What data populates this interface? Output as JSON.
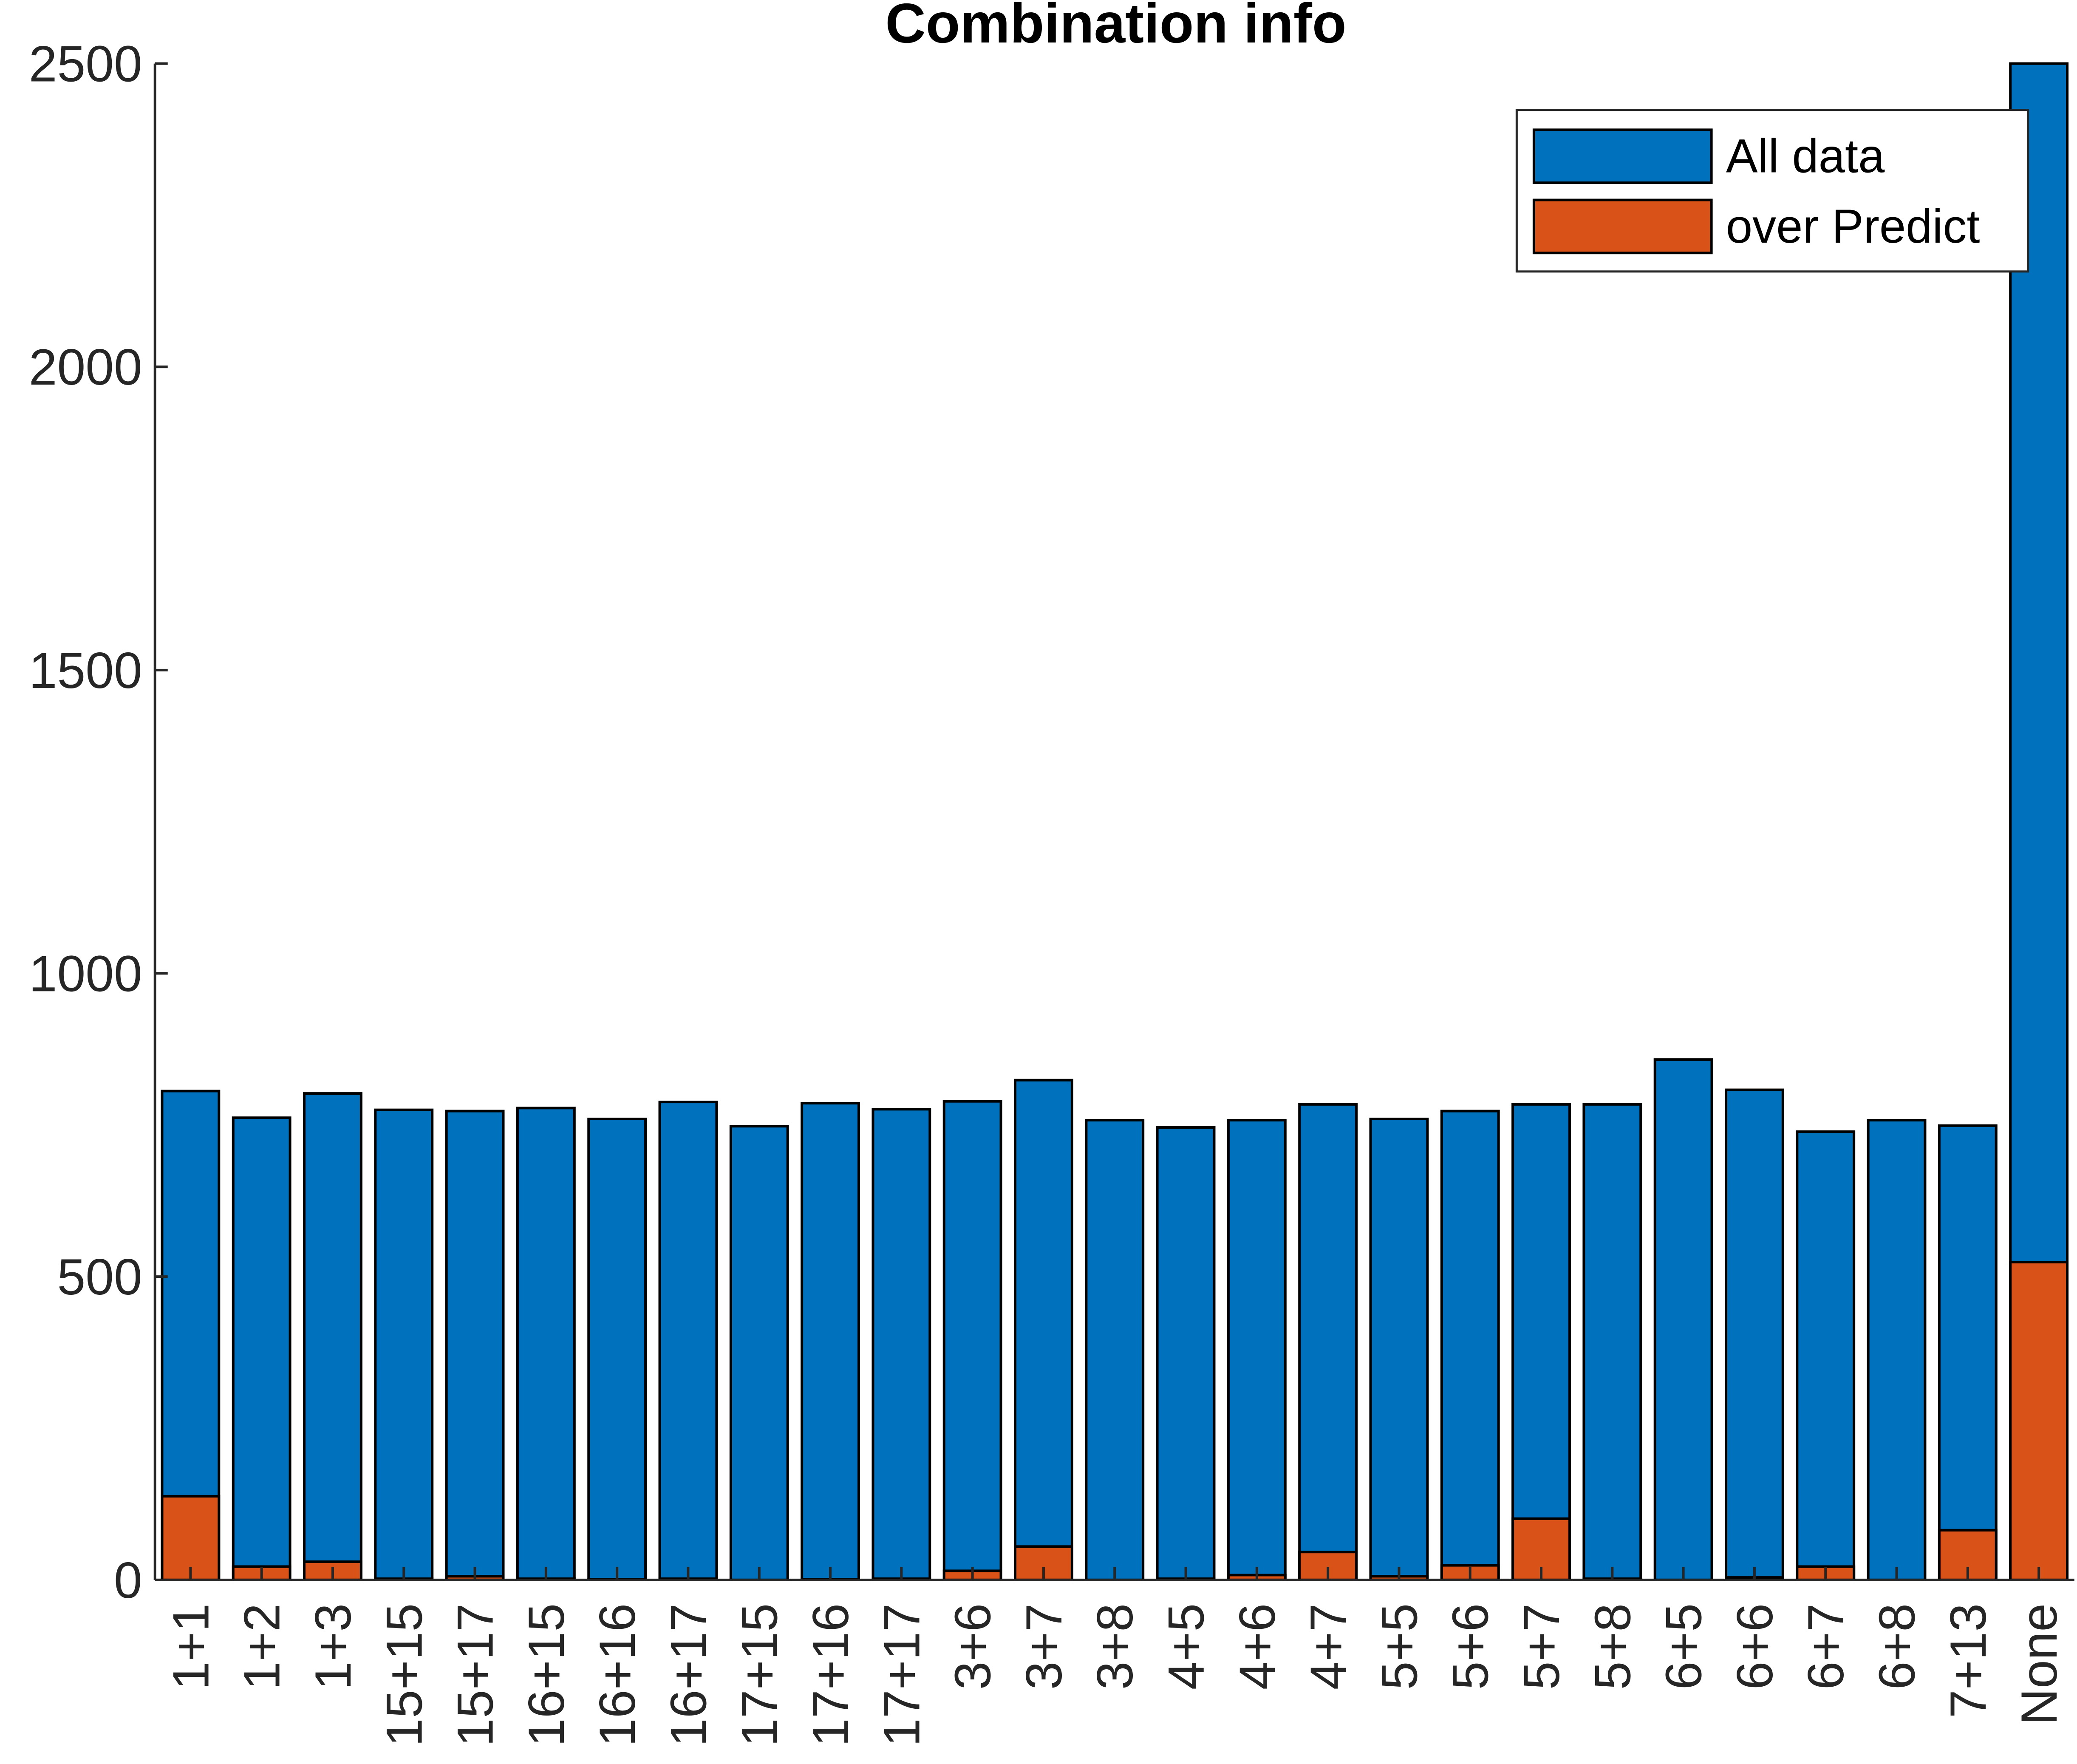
{
  "chart_data": {
    "type": "bar",
    "title": "Combination info",
    "xlabel": "",
    "ylabel": "",
    "ylim": [
      0,
      2500
    ],
    "yticks": [
      0,
      500,
      1000,
      1500,
      2000,
      2500
    ],
    "ytick_labels": [
      "0",
      "500",
      "1000",
      "1500",
      "2000",
      "2500"
    ],
    "grid": false,
    "legend_position": "top-right",
    "overlay": true,
    "categories": [
      "1+1",
      "1+2",
      "1+3",
      "15+15",
      "15+17",
      "16+15",
      "16+16",
      "16+17",
      "17+15",
      "17+16",
      "17+17",
      "3+6",
      "3+7",
      "3+8",
      "4+5",
      "4+6",
      "4+7",
      "5+5",
      "5+6",
      "5+7",
      "5+8",
      "6+5",
      "6+6",
      "6+7",
      "6+8",
      "7+13",
      "None"
    ],
    "series": [
      {
        "name": "All data",
        "color": "#0072BD",
        "values": [
          806,
          762,
          802,
          775,
          773,
          778,
          760,
          788,
          748,
          786,
          776,
          789,
          824,
          758,
          746,
          758,
          784,
          760,
          773,
          784,
          784,
          858,
          808,
          739,
          758,
          749,
          2500
        ]
      },
      {
        "name": "over Predict",
        "color": "#D95319",
        "values": [
          138,
          22,
          30,
          2,
          6,
          2,
          1,
          2,
          0,
          1,
          2,
          15,
          55,
          0,
          2,
          8,
          46,
          6,
          24,
          101,
          2,
          0,
          4,
          22,
          0,
          82,
          524
        ]
      }
    ]
  }
}
